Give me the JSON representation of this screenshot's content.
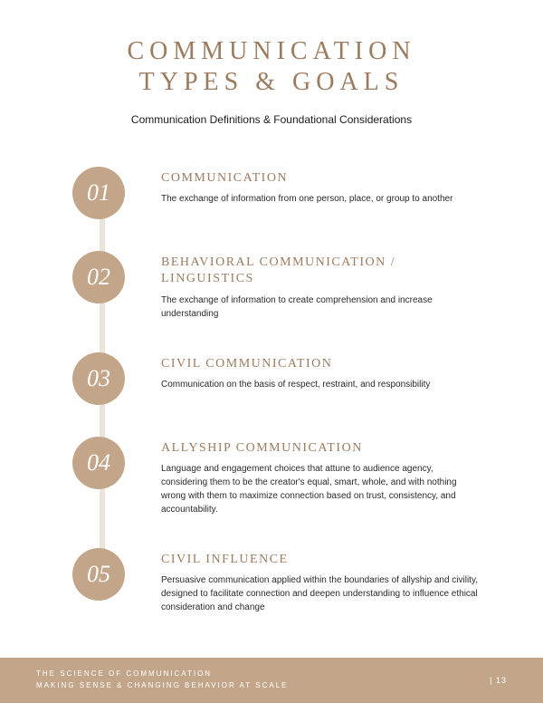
{
  "title_line1": "COMMUNICATION",
  "title_line2": "TYPES & GOALS",
  "subtitle": "Communication Definitions & Foundational Considerations",
  "colors": {
    "accent": "#9c7b5f",
    "circle_bg": "#c3a68a",
    "timeline": "#eae4db",
    "footer_bg": "#c3a68a",
    "text": "#2a2a2a"
  },
  "items": [
    {
      "num": "01",
      "title": "COMMUNICATION",
      "desc": "The exchange of information from one person, place, or group to another"
    },
    {
      "num": "02",
      "title": "BEHAVIORAL COMMUNICATION / LINGUISTICS",
      "desc": "The exchange of information to create comprehension and increase understanding"
    },
    {
      "num": "03",
      "title": "CIVIL COMMUNICATION",
      "desc": "Communication on the basis of respect, restraint, and responsibility"
    },
    {
      "num": "04",
      "title": "ALLYSHIP COMMUNICATION",
      "desc": "Language and engagement choices that attune to audience agency, considering them to be the creator's equal, smart, whole, and with nothing wrong with them to maximize connection based on trust, consistency, and accountability."
    },
    {
      "num": "05",
      "title": "CIVIL INFLUENCE",
      "desc": "Persuasive communication applied within the boundaries of allyship and civility, designed to facilitate connection and deepen understanding to influence ethical consideration and change"
    }
  ],
  "footer": {
    "line1": "THE SCIENCE OF COMMUNICATION",
    "line2": "MAKING SENSE & CHANGING BEHAVIOR AT SCALE",
    "page": "| 13"
  }
}
